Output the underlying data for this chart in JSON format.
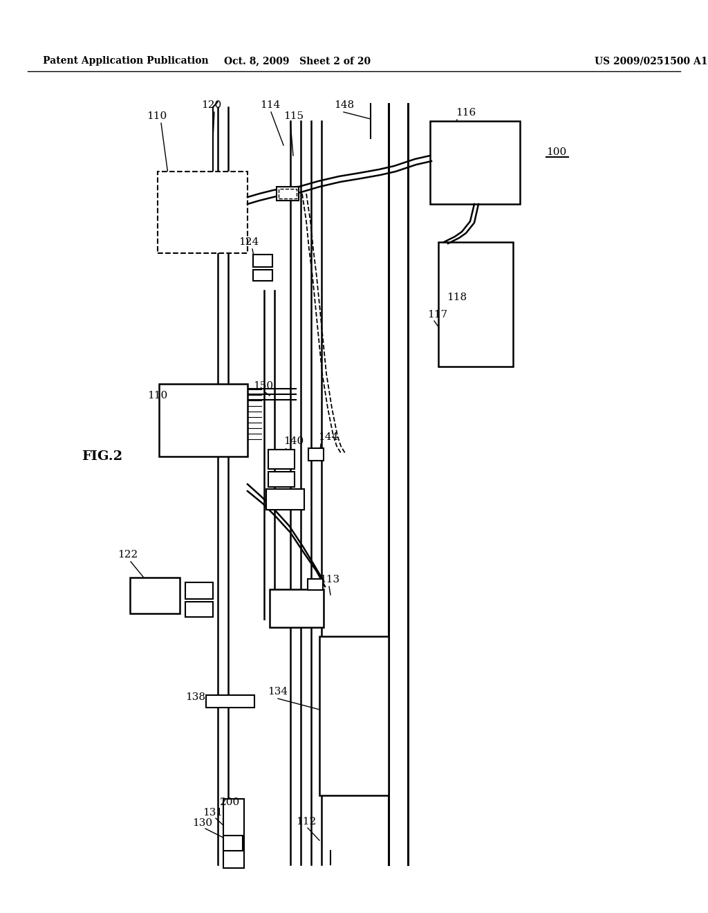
{
  "bg_color": "#ffffff",
  "title_left": "Patent Application Publication",
  "title_center": "Oct. 8, 2009   Sheet 2 of 20",
  "title_right": "US 2009/0251500 A1",
  "fig_label": "FIG.2",
  "ref_100": "100"
}
